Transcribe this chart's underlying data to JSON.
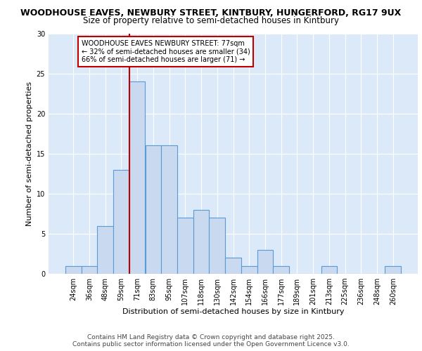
{
  "title_line1": "WOODHOUSE EAVES, NEWBURY STREET, KINTBURY, HUNGERFORD, RG17 9UX",
  "title_line2": "Size of property relative to semi-detached houses in Kintbury",
  "xlabel": "Distribution of semi-detached houses by size in Kintbury",
  "ylabel": "Number of semi-detached properties",
  "categories": [
    "24sqm",
    "36sqm",
    "48sqm",
    "59sqm",
    "71sqm",
    "83sqm",
    "95sqm",
    "107sqm",
    "118sqm",
    "130sqm",
    "142sqm",
    "154sqm",
    "166sqm",
    "177sqm",
    "189sqm",
    "201sqm",
    "213sqm",
    "225sqm",
    "236sqm",
    "248sqm",
    "260sqm"
  ],
  "values": [
    1,
    1,
    6,
    13,
    24,
    16,
    16,
    7,
    8,
    7,
    2,
    1,
    3,
    1,
    0,
    0,
    1,
    0,
    0,
    0,
    1
  ],
  "bar_color": "#c9d9f0",
  "bar_edge_color": "#5b9bd5",
  "highlight_index": 4,
  "highlight_edge_color": "#c00000",
  "annotation_text": "WOODHOUSE EAVES NEWBURY STREET: 77sqm\n← 32% of semi-detached houses are smaller (34)\n66% of semi-detached houses are larger (71) →",
  "ylim": [
    0,
    30
  ],
  "yticks": [
    0,
    5,
    10,
    15,
    20,
    25,
    30
  ],
  "background_color": "#dce9f8",
  "footer_line1": "Contains HM Land Registry data © Crown copyright and database right 2025.",
  "footer_line2": "Contains public sector information licensed under the Open Government Licence v3.0.",
  "title_fontsize": 9,
  "subtitle_fontsize": 8.5,
  "axis_label_fontsize": 8,
  "tick_fontsize": 7,
  "annotation_fontsize": 7,
  "footer_fontsize": 6.5
}
